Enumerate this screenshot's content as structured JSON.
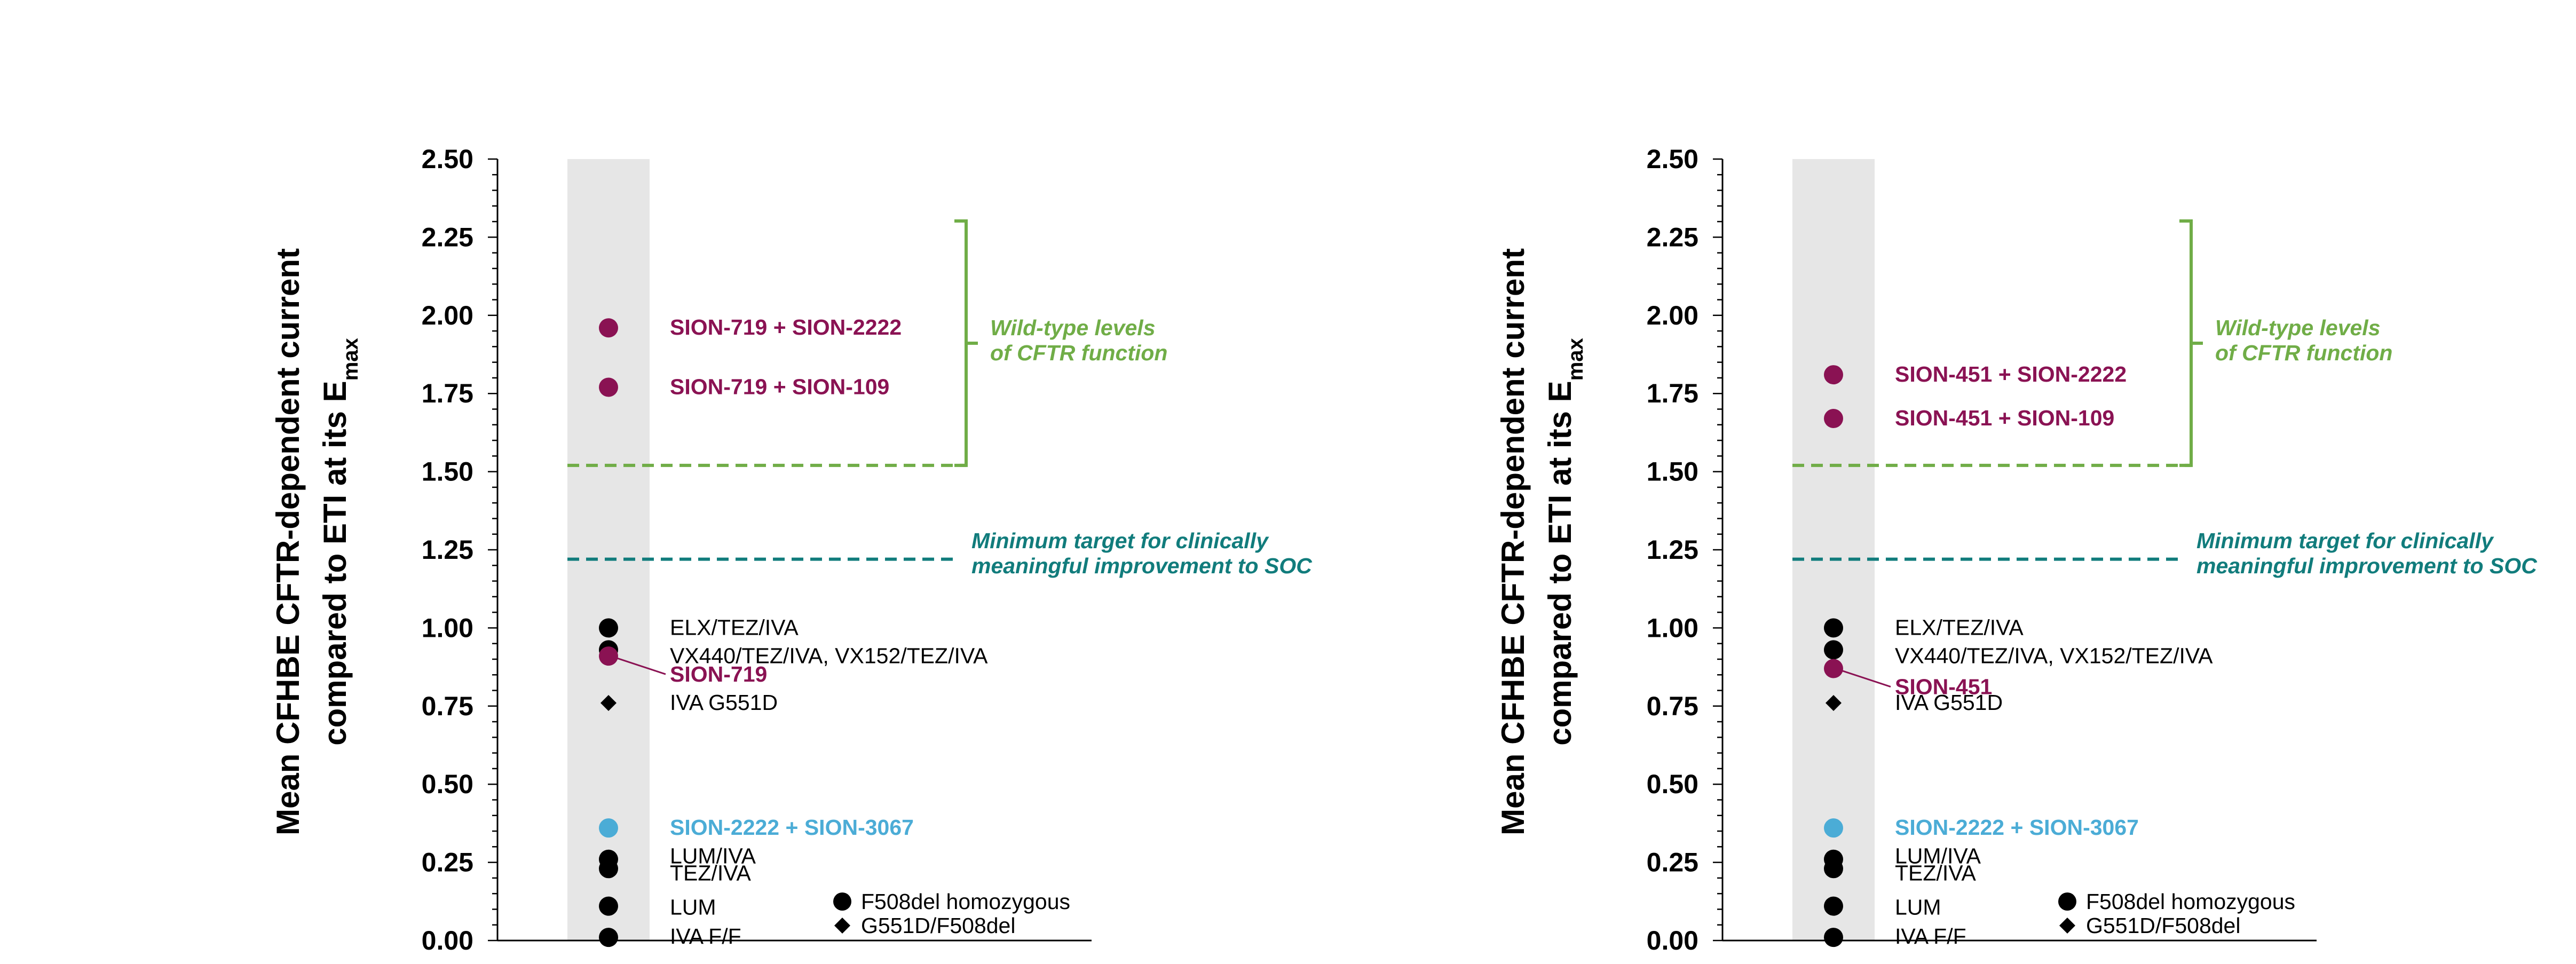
{
  "colors": {
    "black": "#000000",
    "magenta": "#8a1253",
    "blue": "#4bacd6",
    "green": "#70ad47",
    "teal": "#117c7c",
    "column": "#e6e6e6"
  },
  "chart_data": [
    {
      "type": "scatter",
      "ylabel_line1": "Mean CFHBE CFTR-dependent current",
      "ylabel_line2_prefix": "compared to ETI at its E",
      "ylabel_line2_sub": "max",
      "ylim": [
        0,
        2.5
      ],
      "yticks": [
        "0.00",
        "0.25",
        "0.50",
        "0.75",
        "1.00",
        "1.25",
        "1.50",
        "1.75",
        "2.00",
        "2.25",
        "2.50"
      ],
      "ytick_values": [
        0,
        0.25,
        0.5,
        0.75,
        1.0,
        1.25,
        1.5,
        1.75,
        2.0,
        2.25,
        2.5
      ],
      "points": [
        {
          "y": 1.96,
          "marker": "circle",
          "color": "magenta",
          "label": "SION-719 + SION-2222",
          "bold": true
        },
        {
          "y": 1.77,
          "marker": "circle",
          "color": "magenta",
          "label": "SION-719 + SION-109",
          "bold": true
        },
        {
          "y": 1.0,
          "marker": "circle",
          "color": "black",
          "label": "ELX/TEZ/IVA",
          "bold": false
        },
        {
          "y": 0.93,
          "marker": "circle",
          "color": "black",
          "label": "VX440/TEZ/IVA, VX152/TEZ/IVA",
          "bold": false
        },
        {
          "y": 0.91,
          "marker": "circle",
          "color": "magenta",
          "label": "SION-719",
          "bold": true
        },
        {
          "y": 0.76,
          "marker": "diamond",
          "color": "black",
          "label": "IVA G551D",
          "bold": false
        },
        {
          "y": 0.36,
          "marker": "circle",
          "color": "blue",
          "label": "SION-2222 + SION-3067",
          "bold": true
        },
        {
          "y": 0.26,
          "marker": "circle",
          "color": "black",
          "label": "LUM/IVA",
          "bold": false
        },
        {
          "y": 0.23,
          "marker": "circle",
          "color": "black",
          "label": "TEZ/IVA",
          "bold": false
        },
        {
          "y": 0.11,
          "marker": "circle",
          "color": "black",
          "label": "LUM",
          "bold": false
        },
        {
          "y": 0.01,
          "marker": "circle",
          "color": "black",
          "label": "IVA F/F",
          "bold": false
        }
      ],
      "wildtype_line": 1.52,
      "wildtype_label": [
        "Wild-type levels",
        "of CFTR function"
      ],
      "target_line": 1.22,
      "target_label": [
        "Minimum target for clinically",
        "meaningful improvement to SOC"
      ],
      "legend": [
        {
          "marker": "circle",
          "label": "F508del homozygous"
        },
        {
          "marker": "diamond",
          "label": "G551D/F508del"
        }
      ]
    },
    {
      "type": "scatter",
      "ylabel_line1": "Mean CFHBE CFTR-dependent current",
      "ylabel_line2_prefix": "compared to ETI at its E",
      "ylabel_line2_sub": "max",
      "ylim": [
        0,
        2.5
      ],
      "yticks": [
        "0.00",
        "0.25",
        "0.50",
        "0.75",
        "1.00",
        "1.25",
        "1.50",
        "1.75",
        "2.00",
        "2.25",
        "2.50"
      ],
      "ytick_values": [
        0,
        0.25,
        0.5,
        0.75,
        1.0,
        1.25,
        1.5,
        1.75,
        2.0,
        2.25,
        2.5
      ],
      "points": [
        {
          "y": 1.81,
          "marker": "circle",
          "color": "magenta",
          "label": "SION-451 + SION-2222",
          "bold": true
        },
        {
          "y": 1.67,
          "marker": "circle",
          "color": "magenta",
          "label": "SION-451 + SION-109",
          "bold": true
        },
        {
          "y": 1.0,
          "marker": "circle",
          "color": "black",
          "label": "ELX/TEZ/IVA",
          "bold": false
        },
        {
          "y": 0.93,
          "marker": "circle",
          "color": "black",
          "label": "VX440/TEZ/IVA, VX152/TEZ/IVA",
          "bold": false
        },
        {
          "y": 0.87,
          "marker": "circle",
          "color": "magenta",
          "label": "SION-451",
          "bold": true
        },
        {
          "y": 0.76,
          "marker": "diamond",
          "color": "black",
          "label": "IVA G551D",
          "bold": false
        },
        {
          "y": 0.36,
          "marker": "circle",
          "color": "blue",
          "label": "SION-2222 + SION-3067",
          "bold": true
        },
        {
          "y": 0.26,
          "marker": "circle",
          "color": "black",
          "label": "LUM/IVA",
          "bold": false
        },
        {
          "y": 0.23,
          "marker": "circle",
          "color": "black",
          "label": "TEZ/IVA",
          "bold": false
        },
        {
          "y": 0.11,
          "marker": "circle",
          "color": "black",
          "label": "LUM",
          "bold": false
        },
        {
          "y": 0.01,
          "marker": "circle",
          "color": "black",
          "label": "IVA F/F",
          "bold": false
        }
      ],
      "wildtype_line": 1.52,
      "wildtype_label": [
        "Wild-type levels",
        "of CFTR function"
      ],
      "target_line": 1.22,
      "target_label": [
        "Minimum target for clinically",
        "meaningful improvement to SOC"
      ],
      "legend": [
        {
          "marker": "circle",
          "label": "F508del homozygous"
        },
        {
          "marker": "diamond",
          "label": "G551D/F508del"
        }
      ]
    }
  ]
}
